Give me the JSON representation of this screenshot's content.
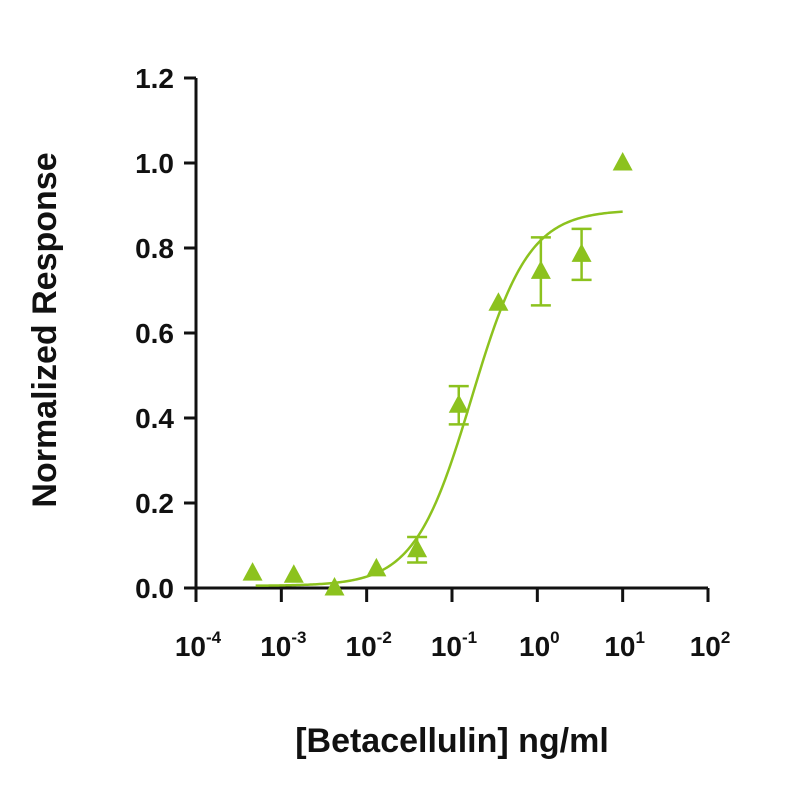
{
  "chart_data": {
    "type": "scatter",
    "xlabel": "[Betacellulin] ng/ml",
    "ylabel": "Normalized Response",
    "xscale": "log",
    "xlim": [
      0.0001,
      100
    ],
    "ylim": [
      0,
      1.2
    ],
    "grid": false,
    "legend": "none",
    "color": "#8cc21e",
    "yticks": [
      "0.0",
      "0.2",
      "0.4",
      "0.6",
      "0.8",
      "1.0",
      "1.2"
    ],
    "xticks": [
      {
        "base": "10",
        "exp": "-4"
      },
      {
        "base": "10",
        "exp": "-3"
      },
      {
        "base": "10",
        "exp": "-2"
      },
      {
        "base": "10",
        "exp": "-1"
      },
      {
        "base": "10",
        "exp": "0"
      },
      {
        "base": "10",
        "exp": "1"
      },
      {
        "base": "10",
        "exp": "2"
      }
    ],
    "series": [
      {
        "marker": "triangle",
        "points": [
          {
            "x": 0.00046,
            "y": 0.035,
            "err": 0
          },
          {
            "x": 0.0014,
            "y": 0.03,
            "err": 0
          },
          {
            "x": 0.0042,
            "y": 0.0,
            "err": 0
          },
          {
            "x": 0.013,
            "y": 0.045,
            "err": 0
          },
          {
            "x": 0.039,
            "y": 0.09,
            "err": 0.03
          },
          {
            "x": 0.12,
            "y": 0.43,
            "err": 0.045
          },
          {
            "x": 0.35,
            "y": 0.67,
            "err": 0
          },
          {
            "x": 1.1,
            "y": 0.745,
            "err": 0.08
          },
          {
            "x": 3.3,
            "y": 0.785,
            "err": 0.06
          },
          {
            "x": 10,
            "y": 1.0,
            "err": 0
          }
        ]
      }
    ],
    "fit": {
      "model": "four-parameter logistic",
      "bottom": 0.005,
      "top": 0.89,
      "ec50": 0.17,
      "hill": 1.3,
      "x_range": [
        0.0005,
        10
      ]
    }
  }
}
